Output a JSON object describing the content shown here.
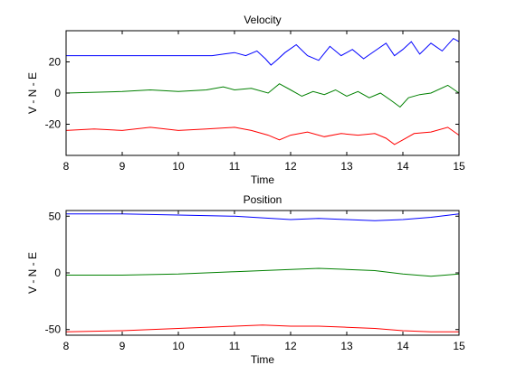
{
  "chart_data": [
    {
      "type": "line",
      "title": "Velocity",
      "xlabel": "Time",
      "ylabel": "V - N - E",
      "xlim": [
        8,
        15
      ],
      "ylim": [
        -40,
        40
      ],
      "xticks": [
        8,
        9,
        10,
        11,
        12,
        13,
        14,
        15
      ],
      "yticks": [
        -20,
        0,
        20
      ],
      "grid": false,
      "series": [
        {
          "color": "#0000ff",
          "x": [
            8.0,
            9.0,
            10.0,
            10.6,
            10.8,
            11.0,
            11.2,
            11.4,
            11.55,
            11.65,
            11.75,
            11.9,
            12.1,
            12.3,
            12.5,
            12.7,
            12.9,
            13.1,
            13.3,
            13.5,
            13.7,
            13.85,
            14.0,
            14.15,
            14.3,
            14.5,
            14.7,
            14.9,
            15.0
          ],
          "y": [
            24,
            24,
            24,
            24,
            25,
            26,
            24,
            27,
            22,
            18,
            21,
            26,
            31,
            24,
            21,
            30,
            24,
            28,
            22,
            27,
            32,
            24,
            28,
            33,
            25,
            32,
            27,
            35,
            33
          ]
        },
        {
          "color": "#008000",
          "x": [
            8.0,
            9.0,
            9.5,
            10.0,
            10.5,
            10.8,
            11.0,
            11.3,
            11.6,
            11.8,
            12.0,
            12.2,
            12.4,
            12.6,
            12.8,
            13.0,
            13.2,
            13.4,
            13.6,
            13.8,
            13.95,
            14.1,
            14.3,
            14.5,
            14.8,
            15.0
          ],
          "y": [
            0,
            1,
            2,
            1,
            2,
            4,
            2,
            3,
            0,
            6,
            2,
            -2,
            1,
            -1,
            2,
            -2,
            1,
            -3,
            0,
            -5,
            -9,
            -3,
            -1,
            0,
            5,
            0
          ]
        },
        {
          "color": "#ff0000",
          "x": [
            8.0,
            8.5,
            9.0,
            9.5,
            10.0,
            10.5,
            11.0,
            11.3,
            11.6,
            11.8,
            12.0,
            12.3,
            12.6,
            12.9,
            13.2,
            13.5,
            13.7,
            13.85,
            14.0,
            14.2,
            14.5,
            14.8,
            15.0
          ],
          "y": [
            -24,
            -23,
            -24,
            -22,
            -24,
            -23,
            -22,
            -24,
            -27,
            -30,
            -27,
            -25,
            -28,
            -26,
            -27,
            -26,
            -29,
            -33,
            -30,
            -26,
            -25,
            -22,
            -27
          ]
        }
      ]
    },
    {
      "type": "line",
      "title": "Position",
      "xlabel": "Time",
      "ylabel": "V - N - E",
      "xlim": [
        8,
        15
      ],
      "ylim": [
        -55,
        55
      ],
      "xticks": [
        8,
        9,
        10,
        11,
        12,
        13,
        14,
        15
      ],
      "yticks": [
        -50,
        0,
        50
      ],
      "grid": false,
      "series": [
        {
          "color": "#0000ff",
          "x": [
            8.0,
            9.0,
            10.0,
            11.0,
            12.0,
            12.5,
            13.0,
            13.5,
            14.0,
            14.5,
            15.0
          ],
          "y": [
            52,
            52,
            51,
            50,
            47,
            48,
            47,
            46,
            47,
            49,
            52
          ]
        },
        {
          "color": "#008000",
          "x": [
            8.0,
            9.0,
            10.0,
            11.0,
            12.0,
            12.5,
            13.0,
            13.5,
            14.0,
            14.5,
            15.0
          ],
          "y": [
            -2,
            -2,
            -1,
            1,
            3,
            4,
            3,
            2,
            -1,
            -3,
            -1
          ]
        },
        {
          "color": "#ff0000",
          "x": [
            8.0,
            9.0,
            10.0,
            11.0,
            11.5,
            12.0,
            12.5,
            13.0,
            13.5,
            14.0,
            14.5,
            15.0
          ],
          "y": [
            -52,
            -51,
            -49,
            -47,
            -46,
            -47,
            -47,
            -48,
            -49,
            -51,
            -52,
            -52
          ]
        }
      ]
    }
  ]
}
